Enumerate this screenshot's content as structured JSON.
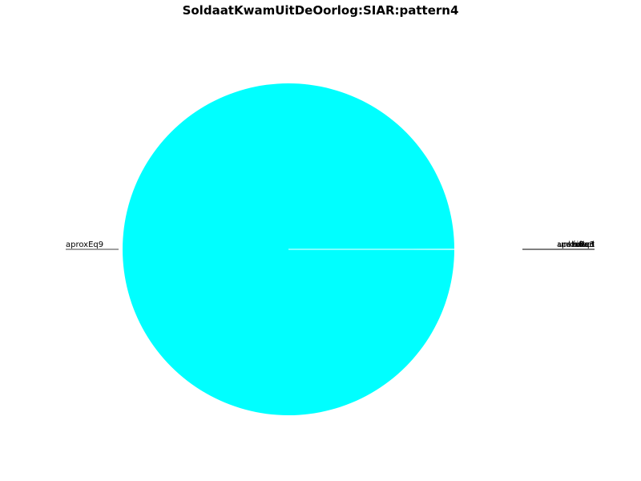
{
  "chart_data": {
    "type": "pie",
    "title": "SoldaatKwamUitDeOorlog:SIAR:pattern4",
    "slices": [
      {
        "label": "aproxEq9",
        "value": 99.9
      },
      {
        "label": "unknown",
        "value": 0.02
      },
      {
        "label": "exact",
        "value": 0.02
      },
      {
        "label": "aproxEq3",
        "value": 0.02
      },
      {
        "label": "shifted",
        "value": 0.02
      },
      {
        "label": "failed",
        "value": 0.02
      }
    ],
    "colors": [
      "#00ffff",
      "#00ffff",
      "#00ffff",
      "#00ffff",
      "#00ffff",
      "#00ffff"
    ],
    "legend": "none"
  }
}
